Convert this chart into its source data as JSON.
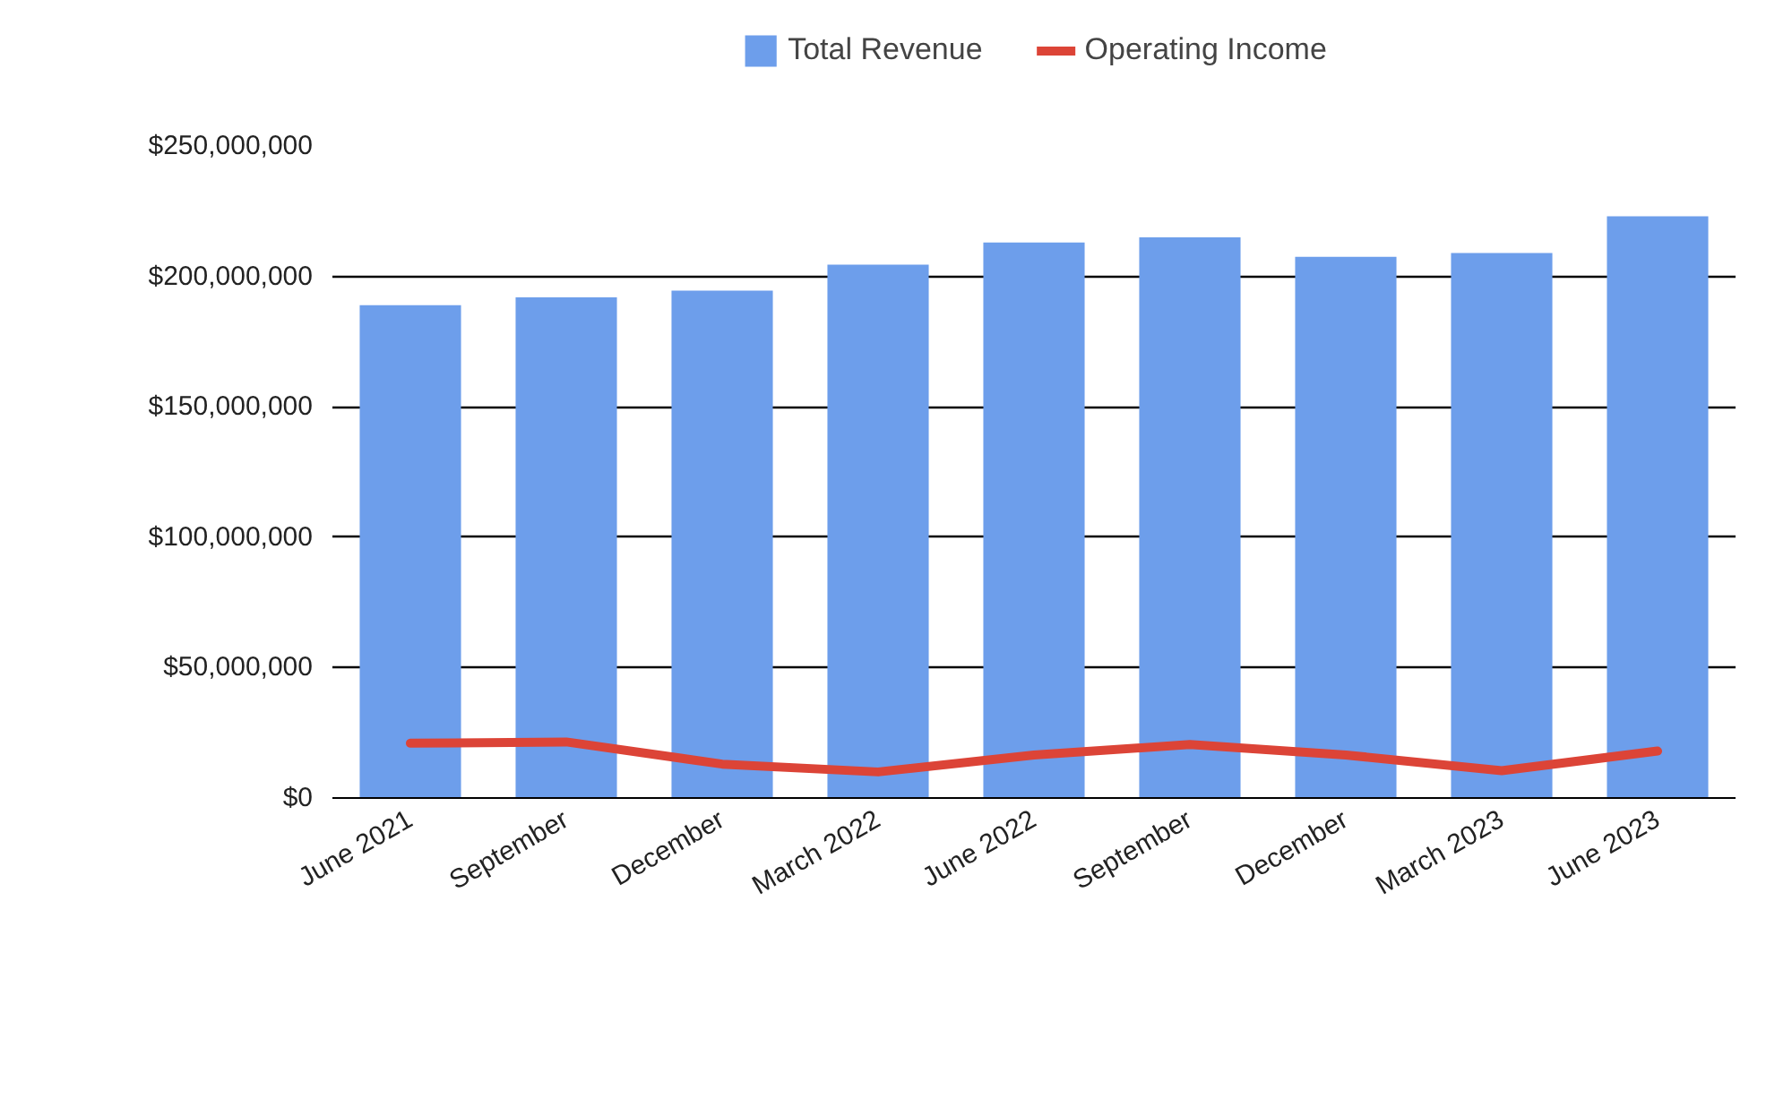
{
  "chart_data": {
    "type": "bar",
    "categories": [
      "June 2021",
      "September",
      "December",
      "March 2022",
      "June 2022",
      "September",
      "December",
      "March 2023",
      "June 2023"
    ],
    "series": [
      {
        "name": "Total Revenue",
        "color": "#6d9eeb",
        "values": [
          189000000,
          192000000,
          194500000,
          204500000,
          213000000,
          215000000,
          207500000,
          209000000,
          223000000
        ]
      },
      {
        "name": "Operating Income",
        "type": "line",
        "color": "#dc4437",
        "values": [
          21000000,
          21500000,
          13000000,
          10000000,
          16500000,
          20500000,
          16500000,
          10500000,
          18000000
        ]
      }
    ],
    "ylim": [
      0,
      250000000
    ],
    "yticks": [
      {
        "value": 0,
        "label": "$0"
      },
      {
        "value": 50000000,
        "label": "$50,000,000"
      },
      {
        "value": 100000000,
        "label": "$100,000,000"
      },
      {
        "value": 150000000,
        "label": "$150,000,000"
      },
      {
        "value": 200000000,
        "label": "$200,000,000"
      },
      {
        "value": 250000000,
        "label": "$250,000,000"
      }
    ],
    "grid": "y",
    "legend": "top",
    "line_style": "solid",
    "marker": "none"
  }
}
